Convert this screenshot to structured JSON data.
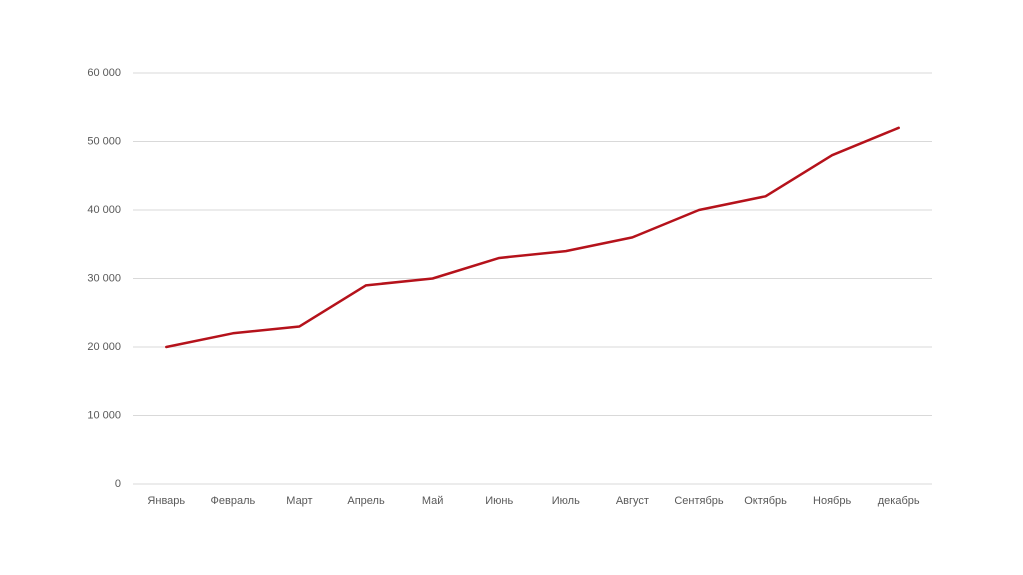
{
  "chart_data": {
    "type": "line",
    "categories": [
      "Январь",
      "Февраль",
      "Март",
      "Апрель",
      "Май",
      "Июнь",
      "Июль",
      "Август",
      "Сентябрь",
      "Октябрь",
      "Ноябрь",
      "декабрь"
    ],
    "values": [
      20000,
      22000,
      23000,
      29000,
      30000,
      33000,
      34000,
      36000,
      40000,
      42000,
      48000,
      52000
    ],
    "color": "#b5121b",
    "ylim": [
      0,
      60000
    ],
    "yticks": [
      0,
      {
        "value": 10000,
        "label": "10 000"
      },
      {
        "value": 20000,
        "label": "20 000"
      },
      {
        "value": 30000,
        "label": "30 000"
      },
      {
        "value": 40000,
        "label": "40 000"
      },
      {
        "value": 50000,
        "label": "50 000"
      },
      {
        "value": 60000,
        "label": "60 000"
      }
    ],
    "grid": true
  }
}
